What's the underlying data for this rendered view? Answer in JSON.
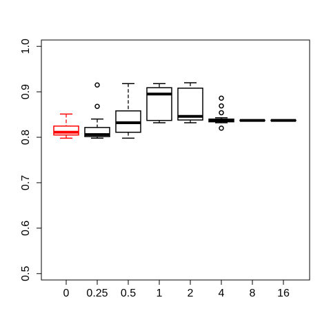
{
  "chart_data": {
    "type": "boxplot",
    "categories": [
      "0",
      "0.25",
      "0.5",
      "1",
      "2",
      "4",
      "8",
      "16"
    ],
    "boxes": [
      {
        "min": 0.798,
        "q1": 0.805,
        "median": 0.811,
        "q3": 0.8246,
        "max": 0.851,
        "outliers": [],
        "color": "#ff0000"
      },
      {
        "min": 0.798,
        "q1": 0.8015,
        "median": 0.806,
        "q3": 0.8215,
        "max": 0.84,
        "outliers": [
          0.915,
          0.868
        ],
        "color": "#000000"
      },
      {
        "min": 0.798,
        "q1": 0.811,
        "median": 0.832,
        "q3": 0.858,
        "max": 0.918,
        "outliers": [],
        "color": "#000000"
      },
      {
        "min": 0.832,
        "q1": 0.837,
        "median": 0.895,
        "q3": 0.909,
        "max": 0.918,
        "outliers": [],
        "color": "#000000"
      },
      {
        "min": 0.832,
        "q1": 0.838,
        "median": 0.846,
        "q3": 0.908,
        "max": 0.92,
        "outliers": [],
        "color": "#000000"
      },
      {
        "min": 0.832,
        "q1": 0.834,
        "median": 0.837,
        "q3": 0.84,
        "max": 0.843,
        "outliers": [
          0.886,
          0.869,
          0.854,
          0.82
        ],
        "color": "#000000"
      },
      {
        "min": 0.836,
        "q1": 0.8365,
        "median": 0.837,
        "q3": 0.8375,
        "max": 0.838,
        "outliers": [],
        "color": "#000000"
      },
      {
        "min": 0.836,
        "q1": 0.8365,
        "median": 0.837,
        "q3": 0.8375,
        "max": 0.838,
        "outliers": [],
        "color": "#000000"
      }
    ],
    "ylim": [
      0.486,
      1.014
    ],
    "yticks": [
      0.5,
      0.6,
      0.7,
      0.8,
      0.9,
      {
        "value": 1,
        "label": "1.0"
      }
    ]
  }
}
